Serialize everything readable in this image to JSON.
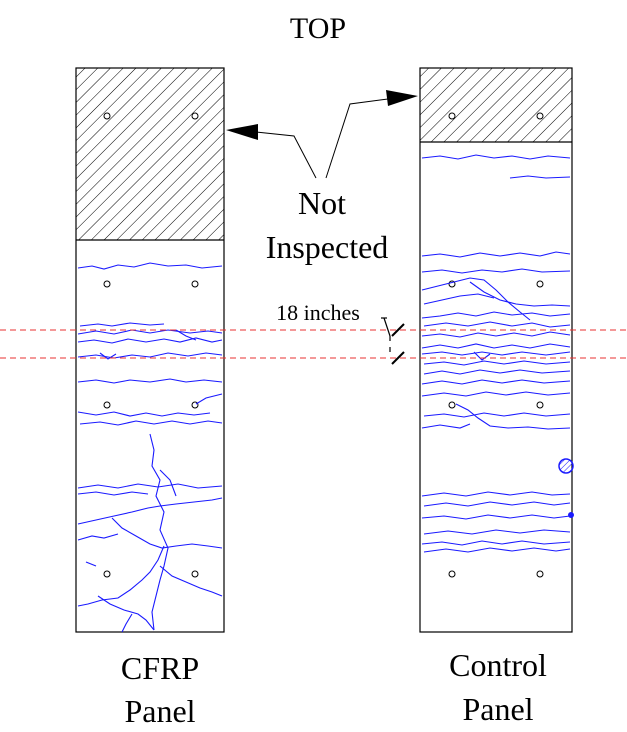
{
  "labels": {
    "top": "TOP",
    "not_inspected_line1": "Not",
    "not_inspected_line2": "Inspected",
    "dimension": "18 inches",
    "cfrp_line1": "CFRP",
    "cfrp_line2": "Panel",
    "control_line1": "Control",
    "control_line2": "Panel"
  },
  "colors": {
    "crack": "#1a1aff",
    "reference_line": "#e83030",
    "outline": "#000000"
  }
}
